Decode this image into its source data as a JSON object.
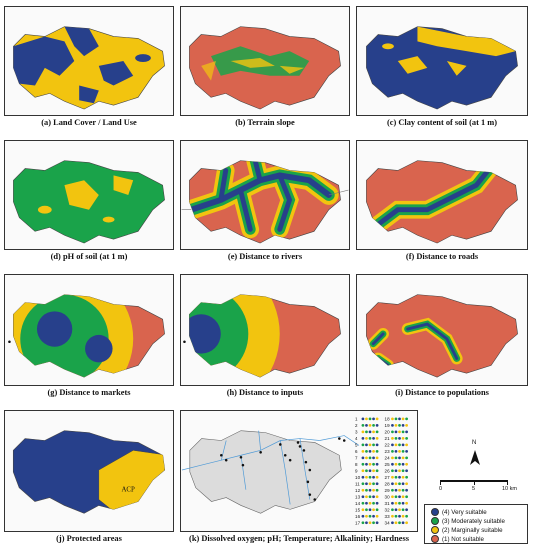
{
  "panels": [
    {
      "id": "a",
      "caption": "(a) Land Cover / Land Use"
    },
    {
      "id": "b",
      "caption": "(b) Terrain slope"
    },
    {
      "id": "c",
      "caption": "(c) Clay content of soil (at 1 m)"
    },
    {
      "id": "d",
      "caption": "(d) pH of soil (at 1 m)"
    },
    {
      "id": "e",
      "caption": "(e) Distance to rivers"
    },
    {
      "id": "f",
      "caption": "(f) Distance to roads"
    },
    {
      "id": "g",
      "caption": "(g) Distance to markets"
    },
    {
      "id": "h",
      "caption": "(h) Distance to inputs"
    },
    {
      "id": "i",
      "caption": "(i) Distance to populations"
    },
    {
      "id": "j",
      "caption": "(j) Protected areas"
    },
    {
      "id": "k",
      "caption": "(k) Dissolved oxygen; pH; Temperature; Alkalinity; Hardness"
    }
  ],
  "protected_area_label": "ACP",
  "legend": {
    "items": [
      {
        "label": "(4) Very suitable",
        "color": "#27408b"
      },
      {
        "label": "(3) Moderately suitable",
        "color": "#1aa34a"
      },
      {
        "label": "(2) Marginally suitable",
        "color": "#f2c40f"
      },
      {
        "label": "(1) Not suitable",
        "color": "#d9644e"
      }
    ]
  },
  "north_arrow_label": "N",
  "scale_bar": {
    "ticks": [
      "0",
      "5",
      "10 km"
    ]
  },
  "station_numbers": [
    "1",
    "2",
    "3",
    "4",
    "5",
    "6",
    "7",
    "8",
    "9",
    "10",
    "11",
    "12",
    "13",
    "14",
    "15",
    "16",
    "17",
    "18",
    "19",
    "20",
    "21",
    "22",
    "23",
    "24",
    "25",
    "26",
    "27",
    "28",
    "29",
    "30",
    "31",
    "32",
    "33",
    "34"
  ],
  "colors": {
    "very": "#27408b",
    "moderate": "#1aa34a",
    "marginal": "#f2c40f",
    "not": "#d9644e"
  }
}
